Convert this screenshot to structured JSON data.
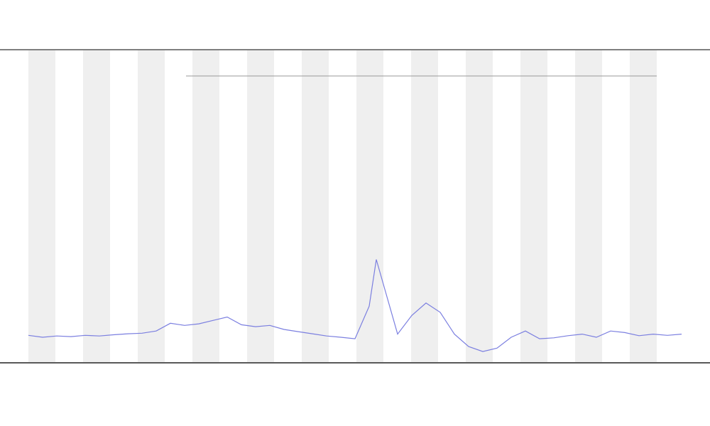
{
  "chart_data": {
    "type": "line",
    "x": [
      0,
      2,
      4,
      6,
      8,
      10,
      12,
      14,
      16,
      18,
      20,
      22,
      24,
      26,
      28,
      30,
      32,
      34,
      36,
      38,
      40,
      42,
      44,
      46,
      48,
      49,
      50,
      52,
      54,
      56,
      58,
      60,
      62,
      64,
      66,
      68,
      70,
      72,
      74,
      76,
      78,
      80,
      82,
      84,
      86,
      88,
      90,
      92
    ],
    "series": [
      {
        "color": "#7b7fe0",
        "values": [
          8.6,
          8.0,
          8.4,
          8.2,
          8.6,
          8.4,
          8.8,
          9.1,
          9.3,
          10,
          12.5,
          11.8,
          12.3,
          13.4,
          14.5,
          12,
          11.4,
          11.8,
          10.5,
          9.8,
          9.1,
          8.4,
          8.0,
          7.5,
          18,
          33,
          25,
          9,
          15,
          19,
          16,
          9,
          5,
          3.4,
          4.5,
          8,
          10,
          7.5,
          7.8,
          8.5,
          9,
          8,
          10,
          9.5,
          8.5,
          9,
          8.6,
          9
        ]
      }
    ],
    "xlim": [
      0,
      92
    ],
    "ylim": [
      0,
      100
    ]
  }
}
